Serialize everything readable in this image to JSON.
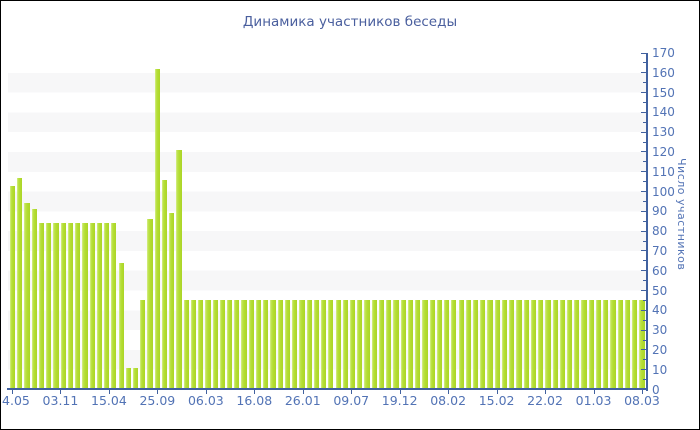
{
  "window": {
    "background": "#ffffff",
    "border_color": "#000000"
  },
  "chart_data": {
    "type": "bar",
    "title": "Динамика участников беседы",
    "ylabel": "Число участников",
    "xlabel": "",
    "ylim": [
      0,
      170
    ],
    "y_major_step": 10,
    "y_minor_step": 5,
    "y_tick_labels": [
      "0",
      "10",
      "20",
      "30",
      "40",
      "50",
      "60",
      "70",
      "80",
      "90",
      "100",
      "110",
      "120",
      "130",
      "140",
      "150",
      "160",
      "170"
    ],
    "legend": "none",
    "grid": "alternating horizontal bands",
    "y_axis_position": "right",
    "x_tick_labels": [
      "24.05",
      "03.11",
      "15.04",
      "25.09",
      "06.03",
      "16.08",
      "26.01",
      "09.07",
      "19.12",
      "08.02",
      "15.02",
      "22.02",
      "01.03",
      "08.03"
    ],
    "values": [
      103,
      107,
      94,
      91,
      84,
      84,
      84,
      84,
      84,
      84,
      84,
      84,
      84,
      84,
      84,
      64,
      11,
      11,
      45,
      86,
      162,
      106,
      89,
      121,
      45,
      45,
      45,
      45,
      45,
      45,
      45,
      45,
      45,
      45,
      45,
      45,
      45,
      45,
      45,
      45,
      45,
      45,
      45,
      45,
      45,
      45,
      45,
      45,
      45,
      45,
      45,
      45,
      45,
      45,
      45,
      45,
      45,
      45,
      45,
      45,
      45,
      45,
      45,
      45,
      45,
      45,
      45,
      45,
      45,
      45,
      45,
      45,
      45,
      45,
      45,
      45,
      45,
      45,
      45,
      45,
      45,
      45,
      45,
      45,
      45,
      45,
      45,
      45
    ],
    "colors": {
      "bar": "#b3dc30",
      "bar_highlight": "#d7ef8d",
      "bar_shadow": "#abd528",
      "axis": "#41619f",
      "tick_label": "#5273b5",
      "title": "#4a5f9e",
      "band": "#f7f7f8",
      "background": "#ffffff"
    }
  }
}
